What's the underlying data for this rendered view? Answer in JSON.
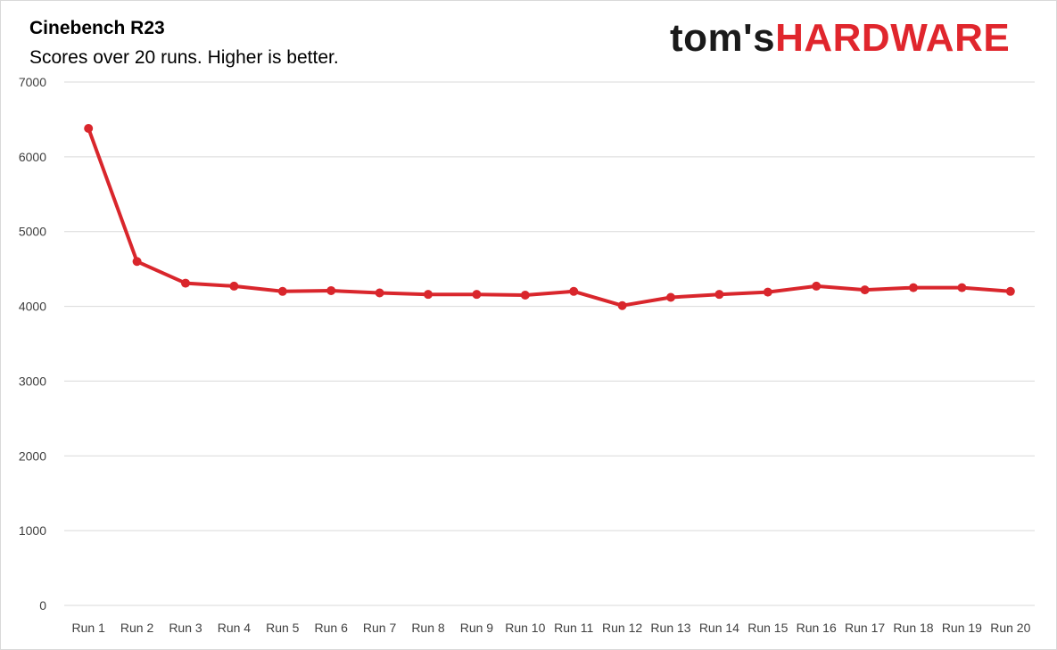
{
  "chart_data": {
    "type": "line",
    "title": "Cinebench R23",
    "subtitle": "Scores over 20 runs. Higher is better.",
    "xlabel": "",
    "ylabel": "",
    "ylim": [
      0,
      7000
    ],
    "yticks": [
      0,
      1000,
      2000,
      3000,
      4000,
      5000,
      6000,
      7000
    ],
    "grid": true,
    "legend": "none",
    "categories": [
      "Run 1",
      "Run 2",
      "Run 3",
      "Run 4",
      "Run 5",
      "Run 6",
      "Run 7",
      "Run 8",
      "Run 9",
      "Run 10",
      "Run 11",
      "Run 12",
      "Run 13",
      "Run 14",
      "Run 15",
      "Run 16",
      "Run 17",
      "Run 18",
      "Run 19",
      "Run 20"
    ],
    "series": [
      {
        "color": "#d9262c",
        "values": [
          6380,
          4600,
          4310,
          4270,
          4200,
          4210,
          4180,
          4160,
          4160,
          4150,
          4200,
          4010,
          4120,
          4160,
          4190,
          4270,
          4220,
          4250,
          4250,
          4200
        ]
      }
    ]
  },
  "logo": {
    "part1": "tom's",
    "part2": "HARDWARE",
    "color_dark": "#1a1a1a",
    "color_red": "#e0262d"
  },
  "colors": {
    "grid": "#d9d9d9",
    "axis_text": "#404040",
    "line": "#d9262c"
  }
}
